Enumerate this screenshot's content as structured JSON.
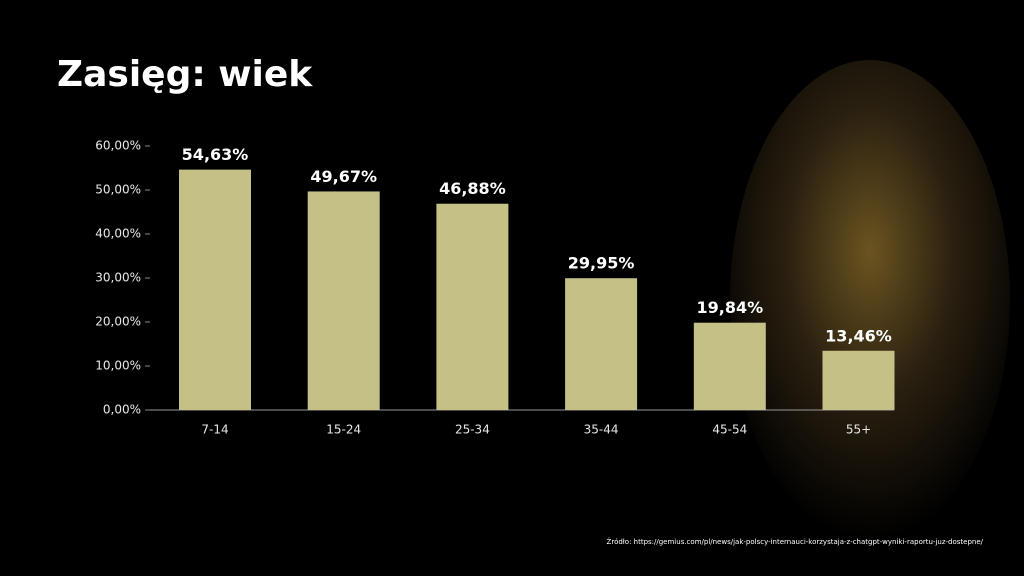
{
  "chart_data": {
    "type": "bar",
    "title": "Zasięg: wiek",
    "categories": [
      "7-14",
      "15-24",
      "25-34",
      "35-44",
      "45-54",
      "55+"
    ],
    "values": [
      54.63,
      49.67,
      46.88,
      29.95,
      19.84,
      13.46
    ],
    "value_labels": [
      "54,63%",
      "49,67%",
      "46,88%",
      "29,95%",
      "19,84%",
      "13,46%"
    ],
    "color": "#c5c086",
    "ylim": [
      0,
      60
    ],
    "yticks": [
      {
        "value": 0,
        "label": "0,00%"
      },
      {
        "value": 10,
        "label": "10,00%"
      },
      {
        "value": 20,
        "label": "20,00%"
      },
      {
        "value": 30,
        "label": "30,00%"
      },
      {
        "value": 40,
        "label": "40,00%"
      },
      {
        "value": 50,
        "label": "50,00%"
      },
      {
        "value": 60,
        "label": "60,00%"
      }
    ],
    "grid": false,
    "source": "Źródło: https://gemius.com/pl/news/jak-polscy-internauci-korzystaja-z-chatgpt-wyniki-raportu-juz-dostepne/"
  }
}
